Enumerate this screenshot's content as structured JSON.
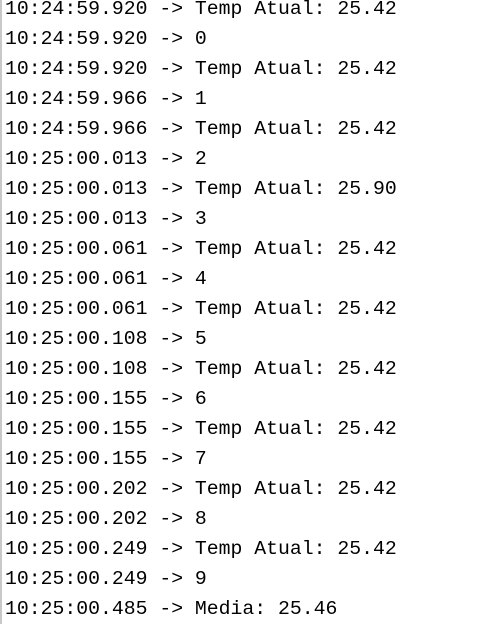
{
  "serial_monitor": {
    "lines": [
      "10:24:59.920 -> Temp Atual: 25.42",
      "10:24:59.920 -> 0",
      "10:24:59.920 -> Temp Atual: 25.42",
      "10:24:59.966 -> 1",
      "10:24:59.966 -> Temp Atual: 25.42",
      "10:25:00.013 -> 2",
      "10:25:00.013 -> Temp Atual: 25.90",
      "10:25:00.013 -> 3",
      "10:25:00.061 -> Temp Atual: 25.42",
      "10:25:00.061 -> 4",
      "10:25:00.061 -> Temp Atual: 25.42",
      "10:25:00.108 -> 5",
      "10:25:00.108 -> Temp Atual: 25.42",
      "10:25:00.155 -> 6",
      "10:25:00.155 -> Temp Atual: 25.42",
      "10:25:00.155 -> 7",
      "10:25:00.202 -> Temp Atual: 25.42",
      "10:25:00.202 -> 8",
      "10:25:00.249 -> Temp Atual: 25.42",
      "10:25:00.249 -> 9",
      "10:25:00.485 -> Media: 25.46"
    ]
  }
}
